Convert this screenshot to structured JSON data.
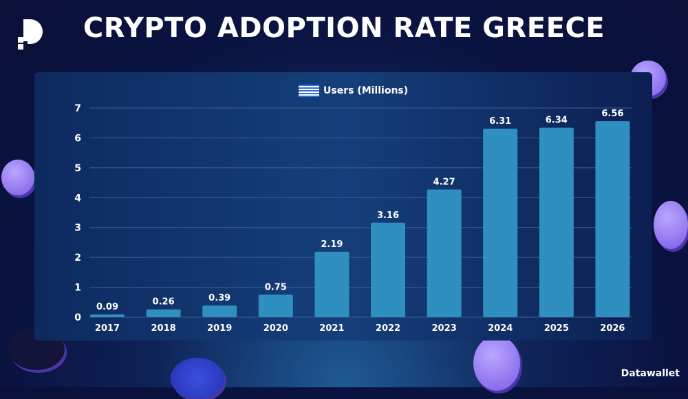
{
  "header": {
    "title": "CRYPTO ADOPTION RATE GREECE",
    "brand": "Datawallet"
  },
  "chart_data": {
    "type": "bar",
    "title": "Users (Millions)",
    "legend_icon": "greece-flag-icon",
    "categories": [
      "2017",
      "2018",
      "2019",
      "2020",
      "2021",
      "2022",
      "2023",
      "2024",
      "2025",
      "2026"
    ],
    "values": [
      0.09,
      0.26,
      0.39,
      0.75,
      2.19,
      3.16,
      4.27,
      6.31,
      6.34,
      6.56
    ],
    "data_labels": [
      "0.09",
      "0.26",
      "0.39",
      "0.75",
      "2.19",
      "3.16",
      "4.27",
      "6.31",
      "6.34",
      "6.56"
    ],
    "yticks": [
      "0",
      "1",
      "2",
      "3",
      "4",
      "5",
      "6",
      "7"
    ],
    "ylim": [
      0,
      7
    ],
    "xlabel": "",
    "ylabel": "",
    "grid": true,
    "bar_color": "#2e8fc0"
  }
}
